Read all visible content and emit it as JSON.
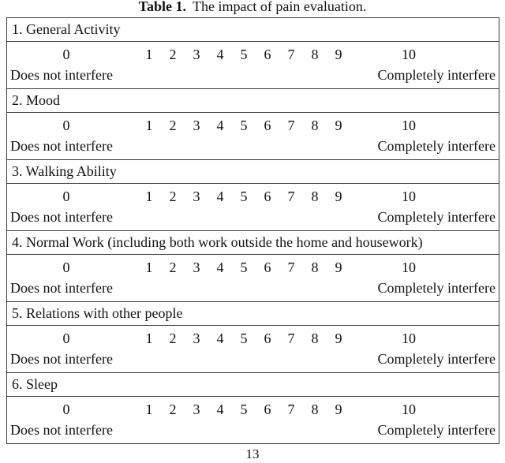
{
  "caption": {
    "label": "Table 1.",
    "text": "The impact of pain evaluation."
  },
  "scale": {
    "min": "0",
    "mid": [
      "1",
      "2",
      "3",
      "4",
      "5",
      "6",
      "7",
      "8",
      "9"
    ],
    "max": "10",
    "min_label": "Does not interfere",
    "max_label": "Completely interfere"
  },
  "items": [
    {
      "label": "1. General Activity"
    },
    {
      "label": "2. Mood"
    },
    {
      "label": "3. Walking Ability"
    },
    {
      "label": "4. Normal Work (including both work outside the home and housework)"
    },
    {
      "label": "5. Relations with other people"
    },
    {
      "label": "6. Sleep"
    }
  ],
  "page_number": "13"
}
